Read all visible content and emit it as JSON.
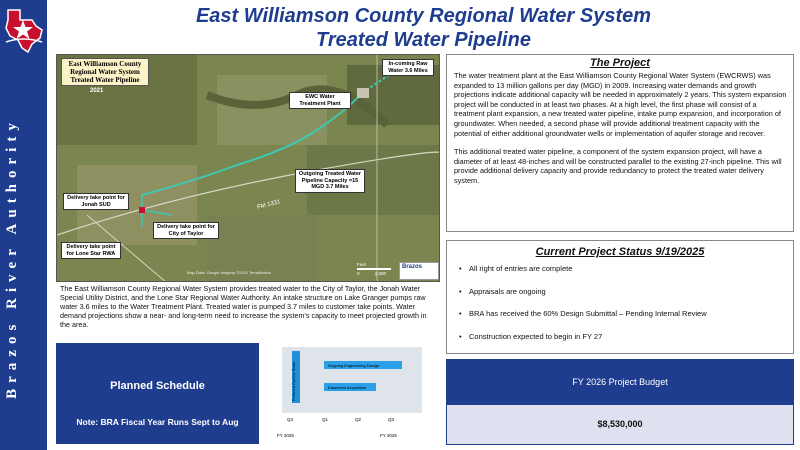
{
  "header": {
    "title_line1": "East Williamson County Regional Water System",
    "title_line2": "Treated Water Pipeline"
  },
  "sidebar": {
    "vertical_text": "Brazos River Authority",
    "logo_icon": "texas-star-logo-icon"
  },
  "map": {
    "title": "East Williamson County Regional Water System Treated Water Pipeline",
    "year": "2021",
    "callouts": {
      "raw_water": "In-coming Raw Water 3.6 Miles",
      "plant": "EWC Water Treatment Plant",
      "pipeline": "Outgoing Treated Water Pipeline Capacity =15 MGD 3.7 Miles",
      "jonah": "Delivery take point for Jonah SUD",
      "taylor": "Delivery take point for City of Taylor",
      "lone_star": "Delivery take point for Lone Star RWA"
    },
    "road_label": "FM 1331",
    "credit": "Map Data: Google Imagery ©2022 TerraMetrics",
    "scale_unit": "Feet",
    "scale_zero": "0",
    "scale_max": "2,000",
    "badge": "Brazos"
  },
  "description": "The East Williamson County Regional Water System provides treated water to the City of Taylor, the Jonah Water Special Utility District, and the Lone Star Regional Water Authority.  An intake structure on Lake Granger pumps raw water 3.6 miles to the Water Treatment Plant. Treated water is pumped 3.7 miles to customer take points. Water demand projections show a near- and long-term need to increase the system's capacity to meet projected growth in the area.",
  "project": {
    "heading": "The Project",
    "para1": "The water treatment plant at the East Williamson County Regional Water System (EWCRWS) was expanded to 13 million gallons per day (MGD) in 2009.  Increasing water demands and growth projections indicate additional capacity will be needed in approximately 2 years.  This system expansion project will be conducted in at least two phases. At a high level, the first phase will consist of a treatment plant expansion, a new treated water pipeline, intake pump expansion, and incorporation of groundwater. When needed, a second phase will provide additional treatment capacity with the potential of either additional groundwater wells or implementation of aquifer storage and recover.",
    "para2": "This additional treated water pipeline, a component of the system expansion project, will have a diameter of at least 48-inches and will be constructed parallel to the existing 27-inch pipeline.  This will provide additional delivery capacity and provide redundancy to protect the treated water delivery system."
  },
  "status": {
    "heading": "Current Project Status 9/19/2025",
    "bullet": "•",
    "items": [
      "All right of entries are complete",
      "Appraisals are ongoing",
      "BRA has received the 60% Design Submittal – Pending Internal Review",
      "Construction expected to begin in FY 27"
    ]
  },
  "budget": {
    "title": "FY 2026 Project Budget",
    "value": "$8,530,000"
  },
  "schedule": {
    "title": "Planned Schedule",
    "note": "Note: BRA Fiscal Year Runs Sept to Aug",
    "gantt": {
      "vertical_bar_label": "Preferred Pipeline Route",
      "bars": [
        "Ongoing Engineering Design",
        "Easement Acquisition"
      ],
      "quarters": [
        "Q4",
        "Q1",
        "Q2",
        "Q3"
      ],
      "fy_start": "FY 2025",
      "fy_end": "FY 2026",
      "colors": {
        "vertical_bar": "#1f8fd8",
        "bars": "#2aa0e6",
        "bg": "#dfe3ea"
      }
    }
  },
  "colors": {
    "brand_blue": "#1f3d8e",
    "budget_value_bg": "#dfe1f1"
  }
}
